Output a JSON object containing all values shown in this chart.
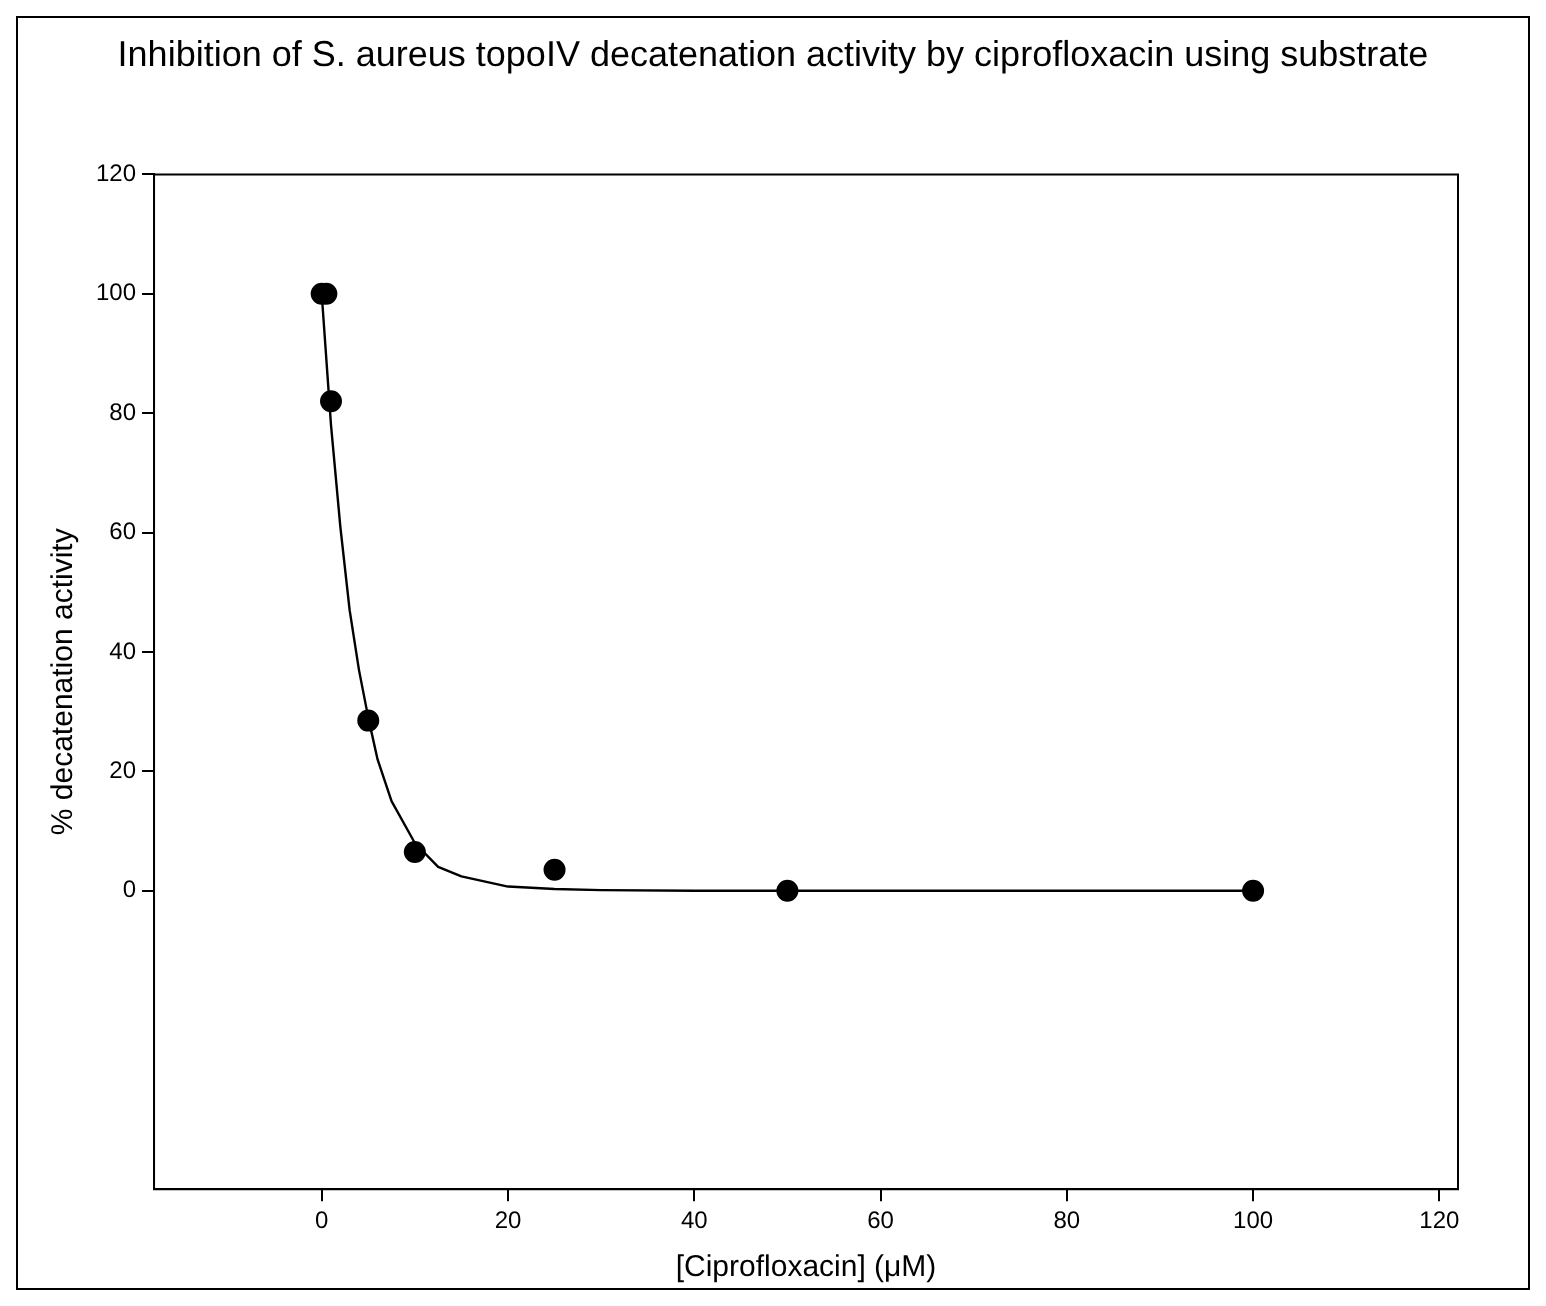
{
  "chart_data": {
    "type": "scatter",
    "title": "Inhibition of S. aureus topoIV decatenation activity by ciprofloxacin using substrate",
    "xlabel": "[Ciprofloxacin] (μM)",
    "ylabel": "% decatenation activity",
    "xlim": [
      -18,
      122
    ],
    "ylim": [
      -50,
      120
    ],
    "xticks": [
      0,
      20,
      40,
      60,
      80,
      100,
      120
    ],
    "yticks": [
      0,
      20,
      40,
      60,
      80,
      100,
      120
    ],
    "grid": false,
    "legend": false,
    "marker": "circle",
    "series": [
      {
        "color": "#000000",
        "x": [
          0,
          0.5,
          1,
          5,
          10,
          25,
          50,
          100
        ],
        "values": [
          100,
          100,
          82,
          28.5,
          6.5,
          3.5,
          0,
          0
        ]
      },
      {
        "type": "line",
        "color": "#000000",
        "marker": "none",
        "x": [
          0,
          1,
          2,
          3,
          4,
          5,
          6,
          7.5,
          10,
          12.5,
          15,
          20,
          25,
          30,
          40,
          60,
          100
        ],
        "values": [
          100,
          78,
          61,
          47,
          37,
          29,
          22,
          15,
          8,
          4,
          2.4,
          0.7,
          0.3,
          0.1,
          0,
          0,
          0
        ]
      }
    ]
  }
}
